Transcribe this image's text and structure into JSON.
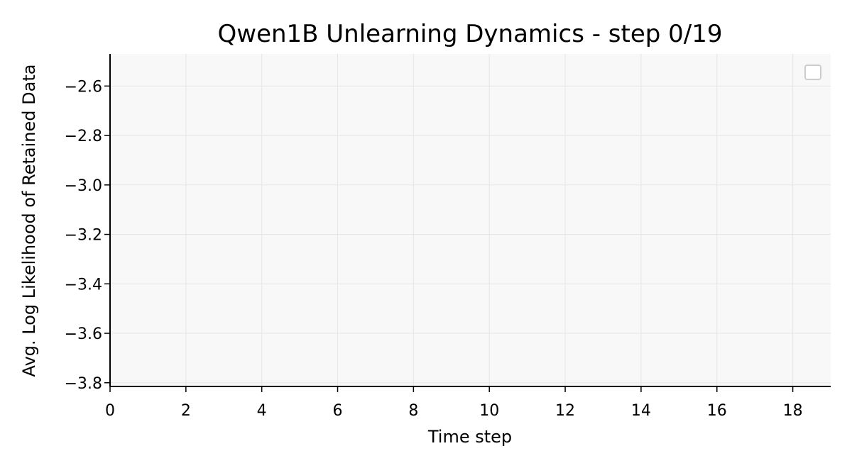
{
  "chart_data": {
    "type": "line",
    "title": "Qwen1B Unlearning Dynamics - step 0/19",
    "xlabel": "Time step",
    "ylabel": "Avg. Log Likelihood of Retained Data",
    "xlim": [
      0,
      19
    ],
    "ylim": [
      -3.815,
      -2.47
    ],
    "x_ticks": [
      0,
      2,
      4,
      6,
      8,
      10,
      12,
      14,
      16,
      18
    ],
    "x_tick_labels": [
      "0",
      "2",
      "4",
      "6",
      "8",
      "10",
      "12",
      "14",
      "16",
      "18"
    ],
    "y_ticks": [
      -2.6,
      -2.8,
      -3.0,
      -3.2,
      -3.4,
      -3.6,
      -3.8
    ],
    "y_tick_labels": [
      "−2.6",
      "−2.8",
      "−3.0",
      "−3.2",
      "−3.4",
      "−3.6",
      "−3.8"
    ],
    "grid": true,
    "legend": "top-right",
    "series": [],
    "colors": {
      "plot_background": "#f8f8f8",
      "grid": "#e6e6e6",
      "axis": "#000000",
      "legend_border": "#cccccc"
    }
  }
}
